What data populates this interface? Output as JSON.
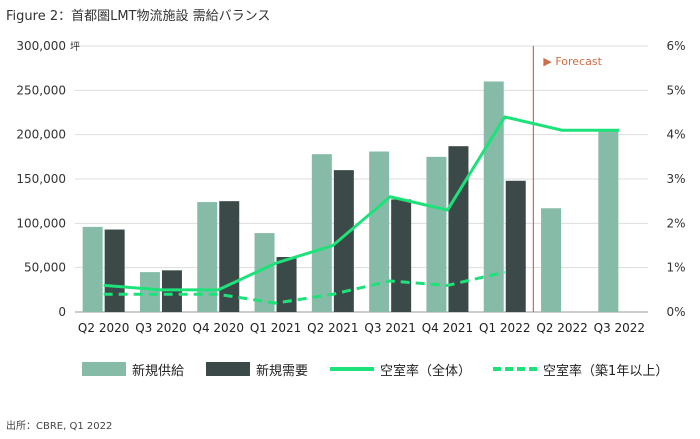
{
  "figure_title": "Figure 2：首都圏LMT物流施設 需給バランス",
  "source": "出所：CBRE, Q1 2022",
  "colors": {
    "supply": "#86bba7",
    "demand": "#3b4a48",
    "vacancy_all": "#1de27a",
    "vacancy_first_year": "#1de27a",
    "forecast": "#cc6f48",
    "axis": "#666666"
  },
  "chart_data": {
    "type": "bar",
    "categories": [
      "Q2 2020",
      "Q3 2020",
      "Q4 2020",
      "Q1 2021",
      "Q2 2021",
      "Q3 2021",
      "Q4 2021",
      "Q1 2022",
      "Q2 2022",
      "Q3 2022"
    ],
    "left_axis": {
      "unit": "坪",
      "min": 0,
      "max": 300000,
      "step": 50000,
      "tick_labels": [
        "0",
        "50,000",
        "100,000",
        "150,000",
        "200,000",
        "250,000",
        "300,000"
      ]
    },
    "right_axis": {
      "min": 0,
      "max": 6,
      "step": 1,
      "tick_labels": [
        "0%",
        "1%",
        "2%",
        "3%",
        "4%",
        "5%",
        "6%"
      ]
    },
    "series": [
      {
        "name": "新規供給",
        "kind": "bar",
        "axis": "left",
        "values": [
          96000,
          45000,
          124000,
          89000,
          178000,
          181000,
          175000,
          260000,
          117000,
          205000
        ]
      },
      {
        "name": "新規需要",
        "kind": "bar",
        "axis": "left",
        "values": [
          93000,
          47000,
          125000,
          62000,
          160000,
          127000,
          187000,
          148000,
          null,
          null
        ]
      },
      {
        "name": "空室率（全体）",
        "kind": "line",
        "style": "solid",
        "axis": "right",
        "values": [
          0.6,
          0.5,
          0.5,
          1.1,
          1.5,
          2.6,
          2.3,
          4.4,
          4.1,
          4.1
        ]
      },
      {
        "name": "空室率（築1年以上）",
        "kind": "line",
        "style": "dashed",
        "axis": "right",
        "values": [
          0.4,
          0.4,
          0.4,
          0.2,
          0.4,
          0.7,
          0.6,
          0.9,
          null,
          null
        ]
      }
    ],
    "forecast": {
      "label": "Forecast",
      "marker": "▶",
      "starts_after": "Q1 2022"
    },
    "grid": "horizontal",
    "legend_position": "bottom"
  }
}
